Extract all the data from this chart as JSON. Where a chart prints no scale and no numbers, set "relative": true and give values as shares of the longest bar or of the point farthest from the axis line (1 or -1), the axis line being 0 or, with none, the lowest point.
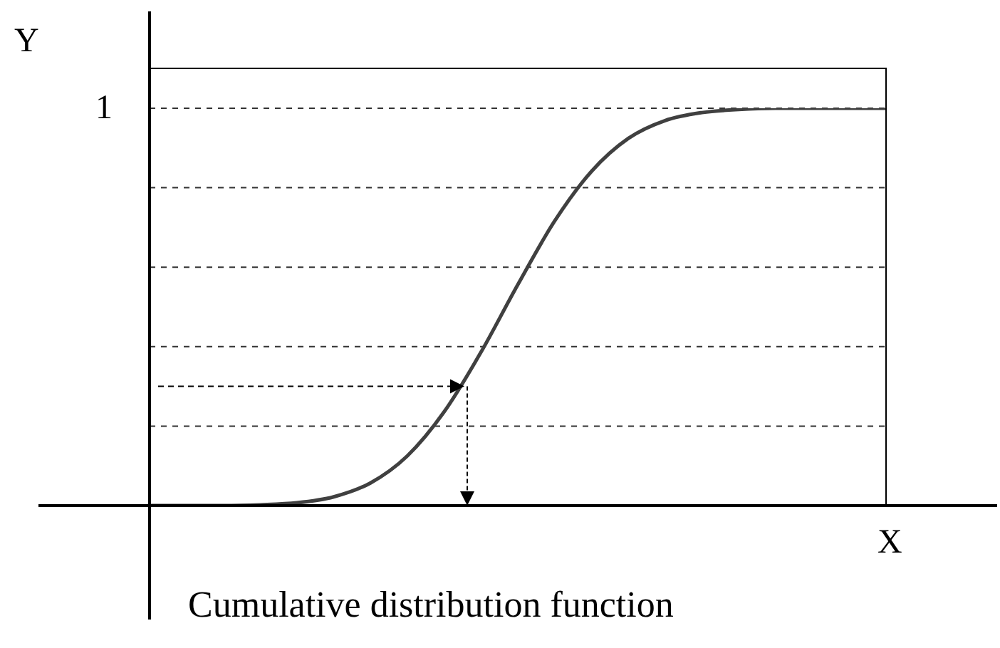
{
  "chart_data": {
    "type": "line",
    "title": "Cumulative distribution function",
    "xlabel": "X",
    "ylabel": "Y",
    "relative": true,
    "categories": [
      null,
      null,
      null,
      null,
      null,
      null,
      null,
      null,
      null,
      null,
      null,
      null,
      null,
      null,
      null,
      null,
      null,
      null,
      null,
      null,
      null
    ],
    "series": [
      {
        "color": "#404040",
        "values": [
          0,
          0,
          0,
          0.002,
          0.007,
          0.022,
          0.057,
          0.125,
          0.236,
          0.386,
          0.556,
          0.716,
          0.841,
          0.924,
          0.969,
          0.989,
          0.997,
          1,
          1,
          1,
          1
        ]
      }
    ],
    "annotations": [
      "1"
    ],
    "ref_lines": [
      {
        "axis": "y",
        "value": 0.2,
        "line_style": "dashed",
        "color": "#333333"
      },
      {
        "axis": "y",
        "value": 0.4,
        "line_style": "dashed",
        "color": "#333333"
      },
      {
        "axis": "y",
        "value": 0.6,
        "line_style": "dashed",
        "color": "#333333"
      },
      {
        "axis": "y",
        "value": 0.8,
        "line_style": "dashed",
        "color": "#333333"
      },
      {
        "axis": "y",
        "value": 1,
        "line_style": "dashed",
        "color": "#333333"
      }
    ],
    "marker": "none",
    "line_style": "solid"
  }
}
